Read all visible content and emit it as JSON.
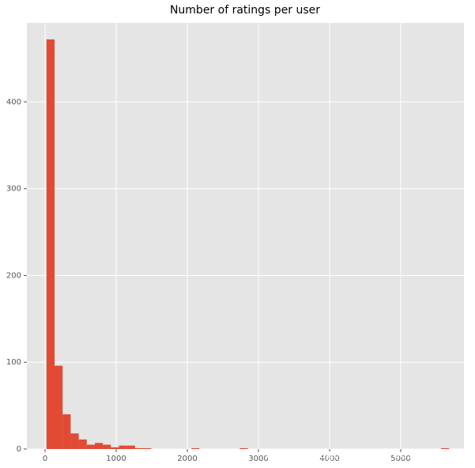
{
  "chart_data": {
    "type": "histogram",
    "title": "Number of ratings per user",
    "bins": [
      20,
      133.2,
      246.4,
      359.6,
      472.8,
      586,
      699.2,
      812.4,
      925.6,
      1038.8,
      1152,
      1265.2,
      1378.4,
      1491.6,
      1604.8,
      1718,
      1831.2,
      1944.4,
      2057.6,
      2170.8,
      2284,
      2397.2,
      2510.4,
      2623.6,
      2736.8,
      2850,
      2963.2,
      3076.4,
      3189.6,
      3302.8,
      3416,
      3529.2,
      3642.4,
      3755.6,
      3868.8,
      3982,
      4095.2,
      4208.4,
      4321.6,
      4434.8,
      4548,
      4661.2,
      4774.4,
      4887.6,
      5000.8,
      5114,
      5227.2,
      5340.4,
      5453.6,
      5566.8,
      5680
    ],
    "values": [
      472,
      96,
      40,
      18,
      11,
      5,
      7,
      5,
      2,
      4,
      4,
      1,
      1,
      0,
      0,
      0,
      0,
      0,
      1,
      0,
      0,
      0,
      0,
      0,
      1,
      0,
      0,
      0,
      0,
      0,
      0,
      0,
      0,
      0,
      0,
      0,
      0,
      0,
      0,
      0,
      0,
      0,
      0,
      0,
      0,
      0,
      0,
      0,
      0,
      1
    ],
    "color": "#E24A33",
    "xlim": [
      -256,
      5889
    ],
    "ylim": [
      0,
      491
    ],
    "xticks": [
      0,
      1000,
      2000,
      3000,
      4000,
      5000
    ],
    "yticks": [
      0,
      100,
      200,
      300,
      400
    ],
    "grid": true,
    "annotation": "https://blog.csdn.net/u012613903"
  }
}
